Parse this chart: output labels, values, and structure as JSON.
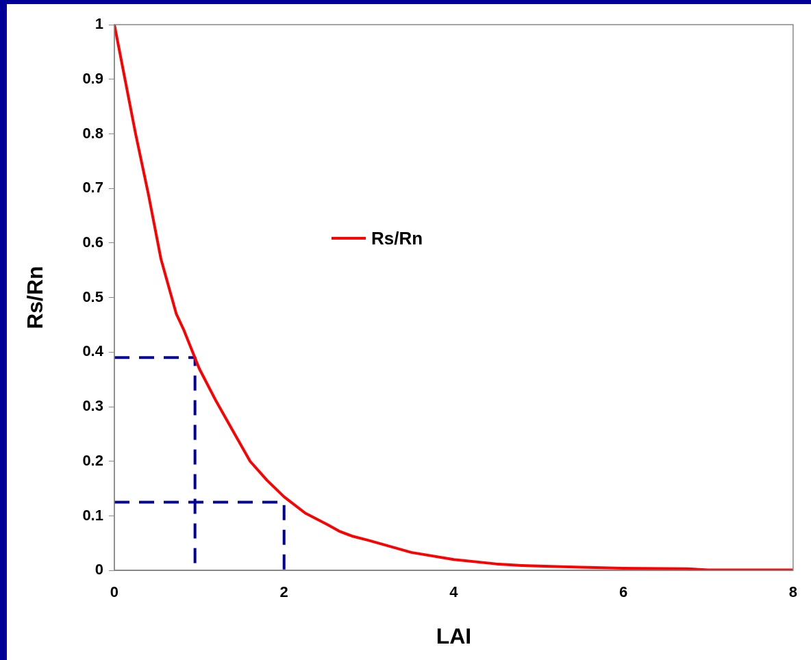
{
  "chart_data": {
    "type": "line",
    "xlabel": "LAI",
    "ylabel": "Rs/Rn",
    "xlim": [
      0,
      8
    ],
    "xticks": [
      0,
      2,
      4,
      6,
      8
    ],
    "ylim": [
      0,
      1
    ],
    "yticks": [
      0,
      0.1,
      0.2,
      0.3,
      0.4,
      0.5,
      0.6,
      0.7,
      0.8,
      0.9,
      1
    ],
    "grid": false,
    "legend": "center",
    "marker": "none",
    "series": [
      {
        "name": "Rs/Rn",
        "color": "#ff0000",
        "line_style": "solid",
        "x": [
          0,
          0.25,
          0.4,
          0.55,
          0.73,
          0.82,
          1,
          1.2,
          1.4,
          1.6,
          1.8,
          2,
          2.25,
          2.5,
          2.65,
          2.8,
          3,
          3.5,
          4,
          4.5,
          4.8,
          5,
          5.5,
          6,
          6.75,
          7,
          8
        ],
        "values": [
          1,
          0.8,
          0.69,
          0.57,
          0.47,
          0.44,
          0.37,
          0.31,
          0.255,
          0.2,
          0.165,
          0.135,
          0.105,
          0.085,
          0.072,
          0.063,
          0.055,
          0.033,
          0.02,
          0.012,
          0.009,
          0.008,
          0.006,
          0.004,
          0.003,
          0.001,
          0.001
        ]
      },
      {
        "color": "#000099",
        "line_style": "dashed",
        "x": [
          0,
          0.95,
          0.95
        ],
        "values": [
          0.39,
          0.39,
          0
        ]
      },
      {
        "color": "#000099",
        "line_style": "dashed",
        "x": [
          0,
          2,
          2
        ],
        "values": [
          0.125,
          0.125,
          0
        ]
      }
    ]
  }
}
